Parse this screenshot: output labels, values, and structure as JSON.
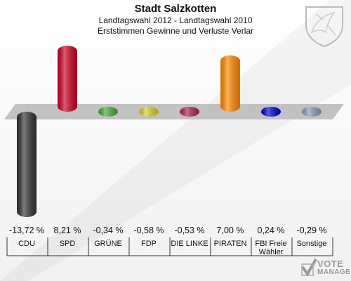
{
  "header": {
    "title": "Stadt Salzkotten",
    "subtitle": "Landtagswahl 2012 - Landtagswahl 2010",
    "subtitle2": "Erststimmen Gewinne und Verluste Verlar"
  },
  "logo": {
    "line1": "VOTE",
    "line2": "MANAGER"
  },
  "colors": {
    "CDU": "#333333",
    "SPD": "#cc0022",
    "GRUENE": "#44aa33",
    "FDP": "#ddcc22",
    "LINKE": "#aa2255",
    "PIRATEN": "#ff8800",
    "FBI": "#0000cc",
    "Sonstige": "#8899bb",
    "baseline": "#bbbbbb"
  },
  "chart_data": {
    "type": "bar",
    "categories": [
      "CDU",
      "SPD",
      "GRÜNE",
      "FDP",
      "DIE LINKE",
      "PIRATEN",
      "FBI Freie Wähler",
      "Sonstige"
    ],
    "values": [
      -13.72,
      8.21,
      -0.34,
      -0.58,
      -0.53,
      7.0,
      0.24,
      -0.29
    ],
    "value_labels": [
      "-13,72 %",
      "8,21 %",
      "-0,34 %",
      "-0,58 %",
      "-0,53 %",
      "7,00 %",
      "0,24 %",
      "-0,29 %"
    ],
    "title": "Stadt Salzkotten",
    "ylim": [
      -13.72,
      8.21
    ]
  }
}
